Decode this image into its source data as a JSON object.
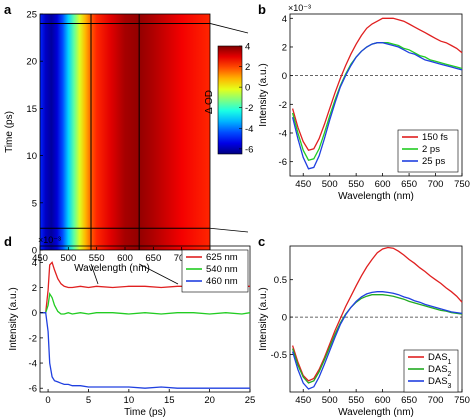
{
  "chart_data": [
    {
      "panel": "a",
      "type": "heatmap",
      "xlabel": "Wavelength (nm)",
      "ylabel": "Time (ps)",
      "xlim": [
        450,
        750
      ],
      "ylim": [
        0,
        25
      ],
      "xticks": [
        450,
        500,
        550,
        600,
        650,
        700,
        750
      ],
      "yticks": [
        0,
        5,
        10,
        15,
        20,
        25
      ],
      "colorbar": {
        "label": "Δ OD",
        "range": [
          -6.5,
          4
        ],
        "ticks": [
          4,
          2,
          0,
          -2,
          -4,
          -6
        ]
      },
      "markers": {
        "wavelength_lines": [
          540,
          625
        ],
        "time_lines": [
          2.3,
          24
        ]
      },
      "spectrum_profile": {
        "wavelength": [
          450,
          460,
          470,
          480,
          490,
          500,
          510,
          520,
          530,
          540,
          550,
          575,
          600,
          625,
          650,
          700,
          750
        ],
        "value": [
          -4.8,
          -5.8,
          -6.2,
          -5.6,
          -4.4,
          -3.0,
          -1.6,
          -0.3,
          0.8,
          1.7,
          2.3,
          3.0,
          3.6,
          3.8,
          3.5,
          2.8,
          2.3
        ]
      }
    },
    {
      "panel": "b",
      "type": "line",
      "xlabel": "Wavelength (nm)",
      "ylabel": "Intensity (a.u.)",
      "scale_label": "×10⁻³",
      "xlim": [
        425,
        750
      ],
      "ylim": [
        -7,
        4.3
      ],
      "xticks": [
        450,
        500,
        550,
        600,
        650,
        700,
        750
      ],
      "yticks": [
        4,
        2,
        0,
        -2,
        -4,
        -6
      ],
      "x": [
        430,
        440,
        450,
        460,
        470,
        480,
        490,
        500,
        510,
        520,
        530,
        540,
        550,
        560,
        570,
        580,
        590,
        600,
        610,
        620,
        630,
        640,
        650,
        660,
        670,
        680,
        690,
        700,
        710,
        720,
        730,
        740,
        750
      ],
      "series": [
        {
          "name": "150 fs",
          "color": "#e02020",
          "values": [
            -2.3,
            -3.6,
            -4.6,
            -5.2,
            -5.1,
            -4.4,
            -3.4,
            -2.3,
            -1.2,
            -0.2,
            0.7,
            1.5,
            2.2,
            2.8,
            3.3,
            3.6,
            3.8,
            4.0,
            4.0,
            4.0,
            3.9,
            3.8,
            3.6,
            3.4,
            3.2,
            3.0,
            2.8,
            2.6,
            2.4,
            2.3,
            2.1,
            1.9,
            1.6
          ]
        },
        {
          "name": "2 ps",
          "color": "#22cc22",
          "values": [
            -2.6,
            -4.0,
            -5.2,
            -5.9,
            -5.8,
            -5.1,
            -4.0,
            -2.8,
            -1.7,
            -0.7,
            0.1,
            0.8,
            1.3,
            1.7,
            2.0,
            2.2,
            2.3,
            2.3,
            2.3,
            2.2,
            2.1,
            1.9,
            1.8,
            1.6,
            1.4,
            1.3,
            1.1,
            1.0,
            0.9,
            0.8,
            0.7,
            0.6,
            0.5
          ]
        },
        {
          "name": "25 ps",
          "color": "#2040e0",
          "values": [
            -2.9,
            -4.4,
            -5.7,
            -6.5,
            -6.4,
            -5.6,
            -4.4,
            -3.1,
            -1.9,
            -0.8,
            0.0,
            0.7,
            1.3,
            1.7,
            2.0,
            2.2,
            2.3,
            2.3,
            2.2,
            2.1,
            2.0,
            1.8,
            1.6,
            1.5,
            1.3,
            1.1,
            1.0,
            0.9,
            0.8,
            0.7,
            0.6,
            0.5,
            0.4
          ]
        }
      ],
      "zero_line": true,
      "legend": "bottom-right"
    },
    {
      "panel": "c",
      "type": "line",
      "xlabel": "Wavelength (nm)",
      "ylabel": "Intensity (a.u.)",
      "xlim": [
        425,
        750
      ],
      "ylim": [
        -1,
        0.95
      ],
      "xticks": [
        450,
        500,
        550,
        600,
        650,
        700,
        750
      ],
      "yticks": [
        0.5,
        0,
        -0.5
      ],
      "x": [
        430,
        440,
        450,
        460,
        470,
        480,
        490,
        500,
        510,
        520,
        530,
        540,
        550,
        560,
        570,
        580,
        590,
        600,
        610,
        620,
        630,
        640,
        650,
        660,
        670,
        680,
        690,
        700,
        710,
        720,
        730,
        740,
        750
      ],
      "series": [
        {
          "name": "DAS",
          "sub": "1",
          "color": "#e02020",
          "values": [
            -0.38,
            -0.6,
            -0.78,
            -0.85,
            -0.82,
            -0.7,
            -0.54,
            -0.36,
            -0.18,
            -0.02,
            0.14,
            0.28,
            0.42,
            0.55,
            0.67,
            0.77,
            0.86,
            0.91,
            0.93,
            0.92,
            0.88,
            0.83,
            0.77,
            0.72,
            0.66,
            0.61,
            0.55,
            0.5,
            0.45,
            0.39,
            0.34,
            0.28,
            0.2
          ]
        },
        {
          "name": "DAS",
          "sub": "2",
          "color": "#22aa22",
          "values": [
            -0.42,
            -0.64,
            -0.8,
            -0.88,
            -0.85,
            -0.73,
            -0.57,
            -0.4,
            -0.23,
            -0.08,
            0.04,
            0.13,
            0.2,
            0.25,
            0.28,
            0.3,
            0.3,
            0.3,
            0.29,
            0.28,
            0.26,
            0.24,
            0.21,
            0.19,
            0.17,
            0.15,
            0.13,
            0.11,
            0.09,
            0.08,
            0.06,
            0.05,
            0.04
          ]
        },
        {
          "name": "DAS",
          "sub": "3",
          "color": "#2040e0",
          "values": [
            -0.46,
            -0.7,
            -0.88,
            -0.96,
            -0.93,
            -0.8,
            -0.63,
            -0.45,
            -0.27,
            -0.1,
            0.03,
            0.13,
            0.21,
            0.27,
            0.31,
            0.33,
            0.34,
            0.34,
            0.33,
            0.32,
            0.3,
            0.27,
            0.25,
            0.22,
            0.2,
            0.17,
            0.15,
            0.13,
            0.11,
            0.09,
            0.07,
            0.06,
            0.05
          ]
        }
      ],
      "zero_line": true,
      "legend": "bottom-right"
    },
    {
      "panel": "d",
      "type": "line",
      "xlabel": "Time (ps)",
      "ylabel": "Intensity (a.u.)",
      "scale_label": "×10⁻³",
      "xlim": [
        -1,
        25
      ],
      "ylim": [
        -6.3,
        5.3
      ],
      "xticks": [
        0,
        5,
        10,
        15,
        20,
        25
      ],
      "yticks": [
        4,
        2,
        0,
        -2,
        -4,
        -6
      ],
      "x": [
        -1,
        -0.3,
        0,
        0.2,
        0.5,
        0.8,
        1.2,
        1.6,
        2,
        2.5,
        3,
        4,
        5,
        6,
        8,
        10,
        12,
        14,
        16,
        18,
        20,
        22,
        24,
        25
      ],
      "series": [
        {
          "name": "625 nm",
          "color": "#e02020",
          "values": [
            0,
            0,
            1.8,
            3.8,
            4.0,
            3.4,
            2.7,
            2.3,
            2.1,
            2.0,
            2.0,
            2.1,
            2.0,
            2.1,
            2.0,
            2.1,
            2.1,
            2.0,
            2.1,
            2.1,
            2.0,
            2.1,
            2.1,
            2.1
          ]
        },
        {
          "name": "540 nm",
          "color": "#22cc22",
          "values": [
            0,
            0,
            0.6,
            1.5,
            1.2,
            0.6,
            0.1,
            -0.1,
            -0.1,
            0.0,
            -0.1,
            0.0,
            -0.1,
            0.0,
            0.0,
            -0.1,
            0.0,
            -0.1,
            0.0,
            0.0,
            -0.1,
            0.0,
            -0.1,
            0.0
          ]
        },
        {
          "name": "460 nm",
          "color": "#2040e0",
          "values": [
            0,
            0,
            -1.5,
            -4.0,
            -5.1,
            -5.4,
            -5.5,
            -5.6,
            -5.7,
            -5.7,
            -5.8,
            -5.8,
            -5.9,
            -5.9,
            -5.9,
            -5.9,
            -6.0,
            -5.9,
            -6.0,
            -6.0,
            -6.0,
            -6.0,
            -6.0,
            -6.0
          ]
        }
      ],
      "legend": "top-right"
    }
  ],
  "panels": {
    "a": {
      "letter": "a"
    },
    "b": {
      "letter": "b"
    },
    "c": {
      "letter": "c"
    },
    "d": {
      "letter": "d"
    }
  }
}
